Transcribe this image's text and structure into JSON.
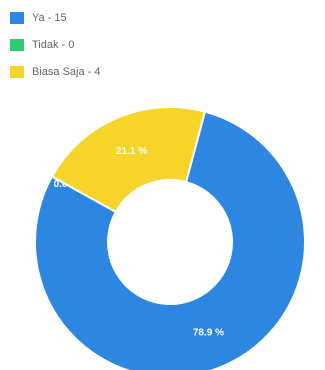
{
  "chart_data": {
    "type": "doughnut",
    "categories": [
      "Ya - 15",
      "Tidak - 0",
      "Biasa Saja - 4"
    ],
    "values": [
      78.9,
      0,
      21.1
    ],
    "value_labels": [
      "78.9 %",
      "0.0 %",
      "21.1 %"
    ],
    "colors": [
      "#2d87e0",
      "#2ecc71",
      "#f7d42a"
    ],
    "legend": "top-left"
  }
}
